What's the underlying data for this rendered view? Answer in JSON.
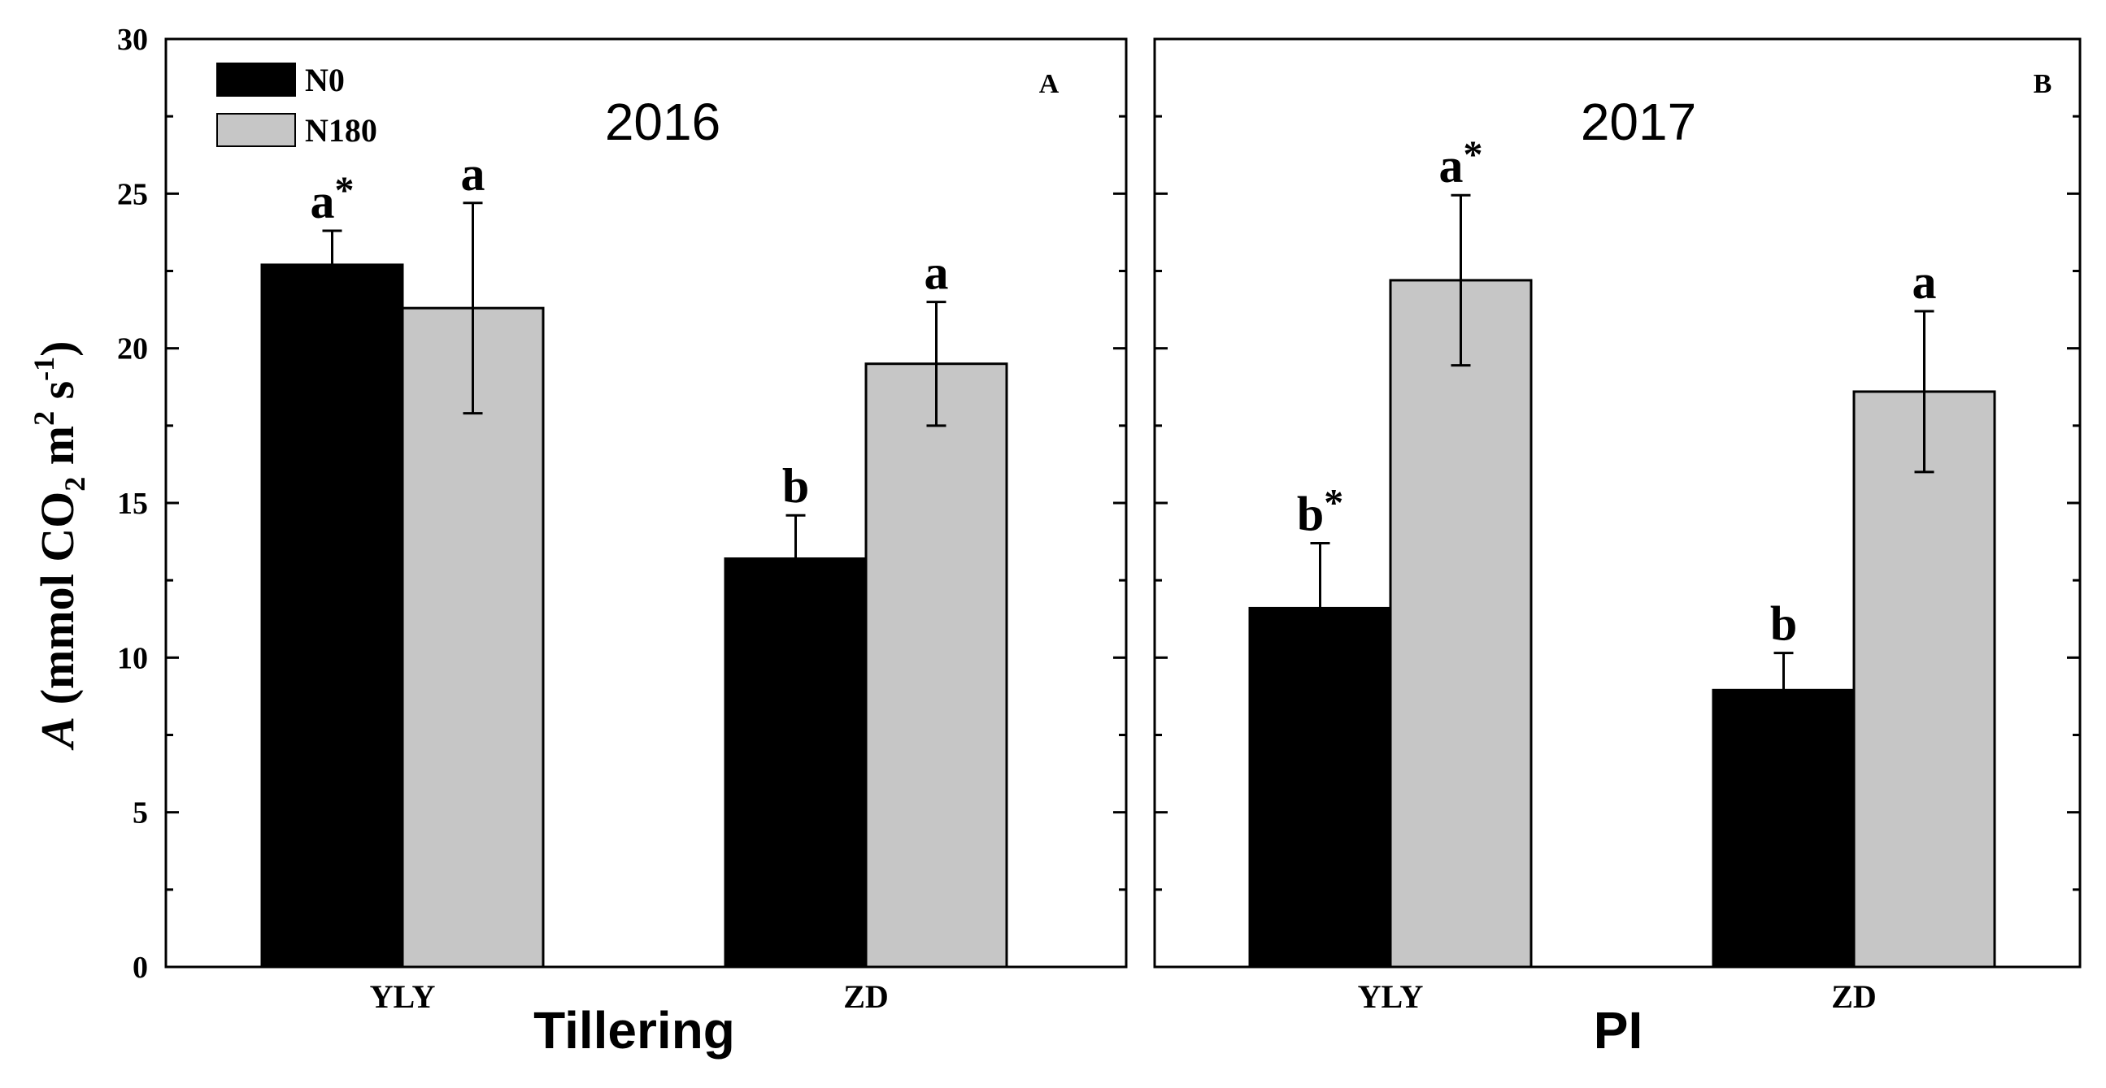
{
  "chart_data": [
    {
      "type": "bar",
      "panel": "A",
      "title": "2016",
      "xlabel": "Tillering",
      "ylabel": "A (mmol CO2 m2 s-1)",
      "ylim": [
        0,
        30
      ],
      "yticks": [
        0,
        5,
        10,
        15,
        20,
        25,
        30
      ],
      "categories": [
        "YLY",
        "ZD"
      ],
      "series": [
        {
          "name": "N0",
          "color": "#000000",
          "values": [
            22.7,
            13.2
          ],
          "errors": [
            1.1,
            1.4
          ],
          "letters": [
            "a*",
            "b"
          ]
        },
        {
          "name": "N180",
          "color": "#c6c6c6",
          "values": [
            21.3,
            19.5
          ],
          "errors": [
            3.4,
            2.0
          ],
          "letters": [
            "a",
            "a"
          ]
        }
      ],
      "legend": [
        "N0",
        "N180"
      ]
    },
    {
      "type": "bar",
      "panel": "B",
      "title": "2017",
      "xlabel": "PI",
      "ylim": [
        0,
        30
      ],
      "categories": [
        "YLY",
        "ZD"
      ],
      "series": [
        {
          "name": "N0",
          "color": "#000000",
          "values": [
            11.6,
            8.95
          ],
          "errors": [
            2.1,
            1.2
          ],
          "letters": [
            "b*",
            "b"
          ]
        },
        {
          "name": "N180",
          "color": "#c6c6c6",
          "values": [
            22.2,
            18.6
          ],
          "errors": [
            2.75,
            2.6
          ],
          "letters": [
            "a*",
            "a"
          ]
        }
      ]
    }
  ],
  "ylabel_parts": {
    "italic": "A",
    "open": " (mmol CO",
    "sub": "2",
    "mid": " m",
    "sup1": "2",
    "s": " s",
    "sup2": "-1",
    "close": ")"
  }
}
